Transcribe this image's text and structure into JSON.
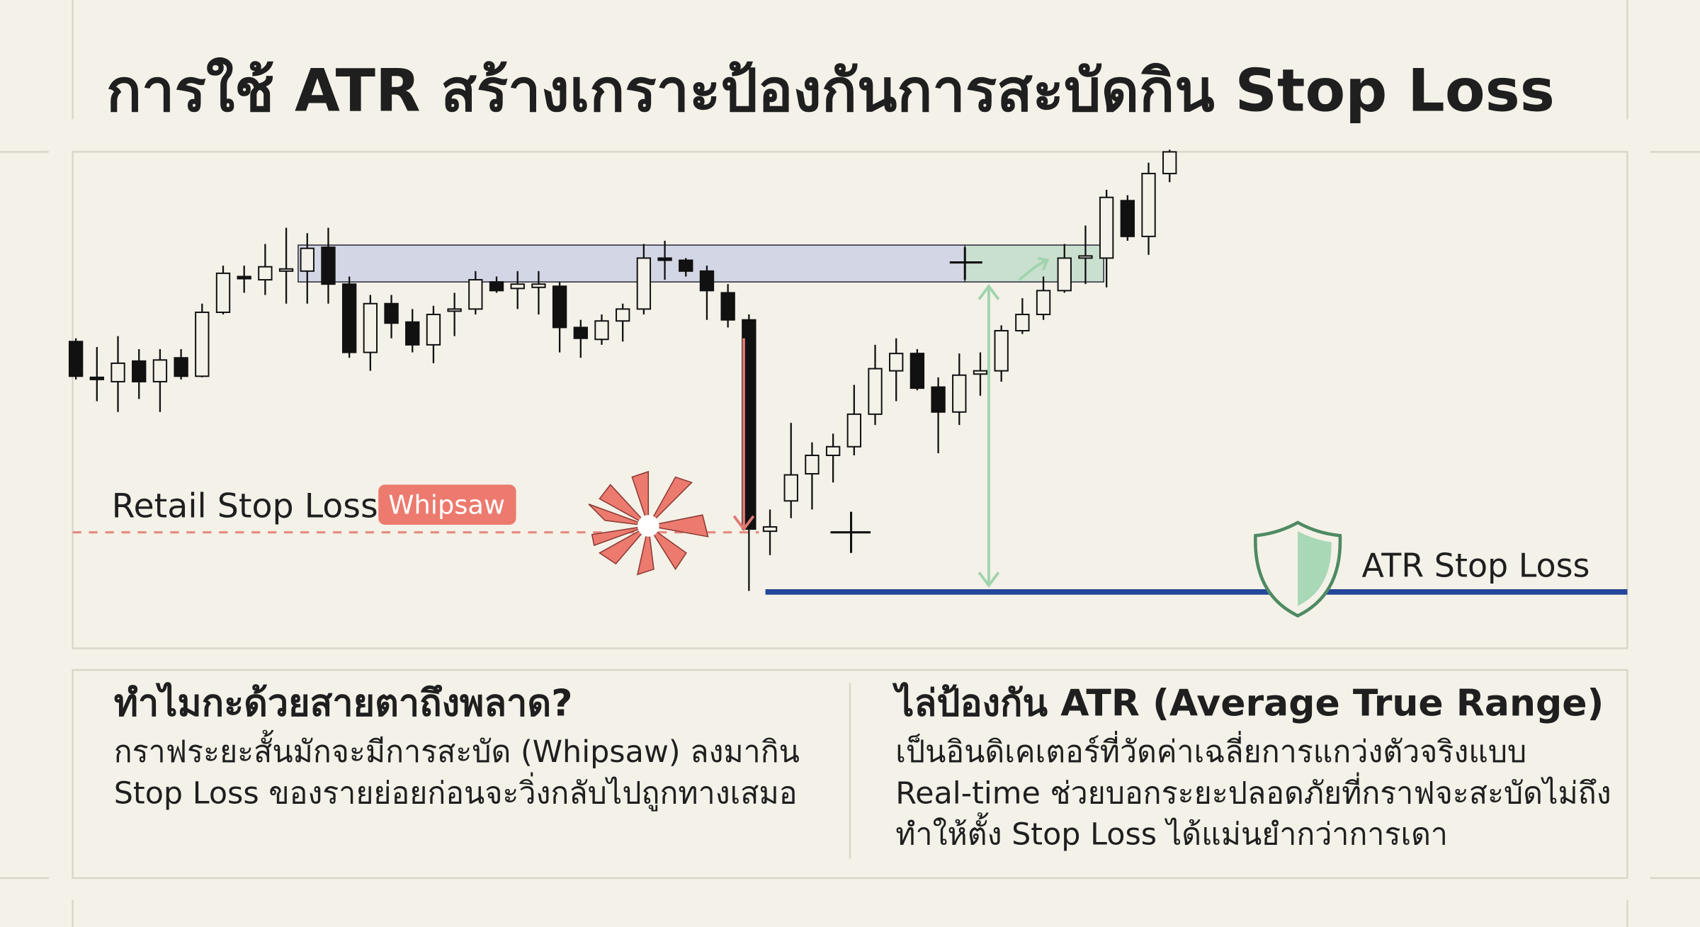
{
  "header": {
    "title": "การใช้ ATR สร้างเกราะป้องกันการสะบัดกิน Stop Loss"
  },
  "chart": {
    "retail_label": "Retail Stop Loss",
    "whipsaw_badge": "Whipsaw",
    "atr_label": "ATR Stop Loss",
    "ylim": [
      0,
      460
    ],
    "candles": [
      [
        285,
        288,
        250,
        253
      ],
      [
        252,
        280,
        230,
        250
      ],
      [
        248,
        290,
        220,
        265
      ],
      [
        267,
        278,
        232,
        248
      ],
      [
        248,
        278,
        220,
        268
      ],
      [
        270,
        278,
        250,
        253
      ],
      [
        253,
        320,
        252,
        312
      ],
      [
        312,
        355,
        310,
        348
      ],
      [
        345,
        355,
        330,
        344
      ],
      [
        342,
        375,
        328,
        354
      ],
      [
        350,
        390,
        320,
        352
      ],
      [
        350,
        385,
        320,
        371
      ],
      [
        372,
        390,
        320,
        338
      ],
      [
        338,
        345,
        270,
        275
      ],
      [
        275,
        328,
        258,
        320
      ],
      [
        320,
        328,
        288,
        302
      ],
      [
        303,
        315,
        275,
        282
      ],
      [
        282,
        318,
        265,
        310
      ],
      [
        313,
        330,
        290,
        315
      ],
      [
        315,
        350,
        310,
        342
      ],
      [
        340,
        345,
        330,
        332
      ],
      [
        334,
        350,
        315,
        338
      ],
      [
        335,
        350,
        310,
        338
      ],
      [
        336,
        340,
        275,
        298
      ],
      [
        298,
        305,
        270,
        288
      ],
      [
        287,
        310,
        282,
        304
      ],
      [
        304,
        320,
        285,
        315
      ],
      [
        315,
        375,
        310,
        362
      ],
      [
        362,
        378,
        342,
        361
      ],
      [
        360,
        362,
        345,
        350
      ],
      [
        350,
        355,
        305,
        332
      ],
      [
        330,
        338,
        298,
        305
      ],
      [
        305,
        310,
        55,
        112
      ],
      [
        110,
        130,
        88,
        114
      ],
      [
        138,
        210,
        122,
        162
      ],
      [
        163,
        192,
        130,
        180
      ],
      [
        180,
        200,
        155,
        188
      ],
      [
        188,
        245,
        180,
        218
      ],
      [
        218,
        282,
        208,
        260
      ],
      [
        258,
        288,
        230,
        274
      ],
      [
        274,
        278,
        240,
        242
      ],
      [
        243,
        252,
        182,
        220
      ],
      [
        220,
        274,
        208,
        254
      ],
      [
        255,
        275,
        235,
        258
      ],
      [
        258,
        300,
        248,
        295
      ],
      [
        295,
        325,
        292,
        310
      ],
      [
        310,
        345,
        305,
        332
      ],
      [
        332,
        375,
        330,
        362
      ],
      [
        364,
        392,
        338,
        364
      ],
      [
        362,
        425,
        335,
        418
      ],
      [
        415,
        420,
        378,
        382
      ],
      [
        382,
        450,
        365,
        440
      ],
      [
        440,
        462,
        432,
        460
      ]
    ]
  },
  "left_panel": {
    "heading": "ทำไมกะด้วยสายตาถึงพลาด?",
    "lines": [
      "กราฟระยะสั้นมักจะมีการสะบัด (Whipsaw) ลงมากิน",
      "Stop Loss ของรายย่อยก่อนจะวิ่งกลับไปถูกทางเสมอ"
    ]
  },
  "right_panel": {
    "heading": "ไล่ป้องกัน ATR (Average True Range)",
    "lines": [
      "เป็นอินดิเคเตอร์ที่วัดค่าเฉลี่ยการแกว่งตัวจริงแบบ",
      "Real-time ช่วยบอกระยะปลอดภัยที่กราฟจะสะบัดไม่ถึง",
      "ทำให้ตั้ง Stop Loss ได้แม่นยำกว่าการเดา"
    ]
  }
}
